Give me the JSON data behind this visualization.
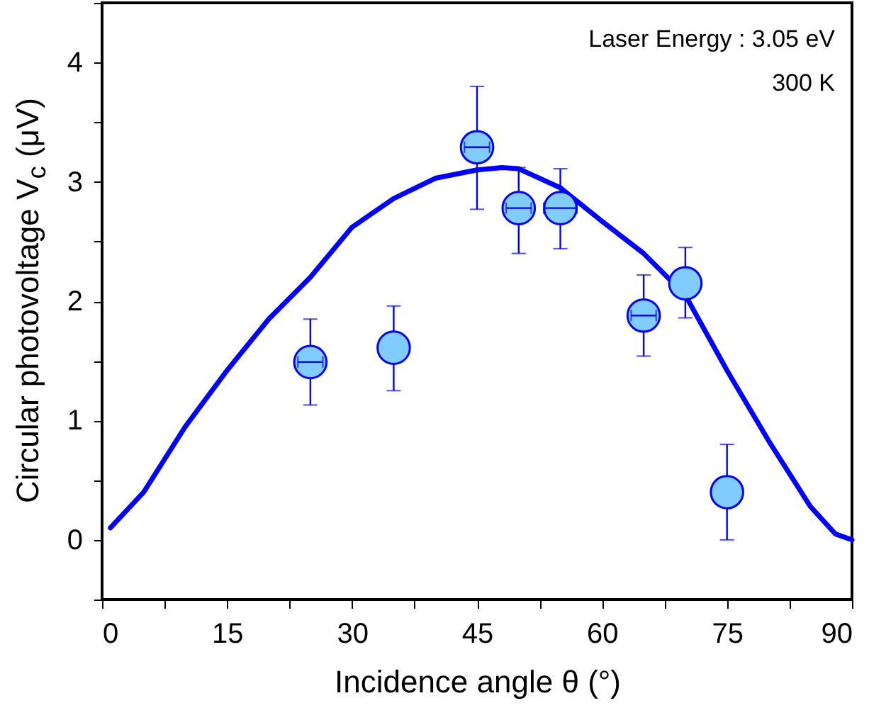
{
  "chart_data": {
    "type": "scatter",
    "xlabel": "Incidence angle θ (°)",
    "ylabel": "Circular photovoltage V$_{c}$ (μV)",
    "annotations": [
      "Laser Energy : 3.05 eV",
      "300 K"
    ],
    "xlim": [
      0,
      90
    ],
    "ylim": [
      -0.5,
      4.5
    ],
    "xticks": [
      0,
      {
        "value": 7.5,
        "label": null
      },
      15,
      {
        "value": 22.5,
        "label": null
      },
      30,
      {
        "value": 37.5,
        "label": null
      },
      45,
      {
        "value": 52.5,
        "label": null
      },
      60,
      {
        "value": 67.5,
        "label": null
      },
      75,
      {
        "value": 82.5,
        "label": null
      },
      90
    ],
    "yticks": [
      {
        "value": -0.5,
        "label": null
      },
      0,
      {
        "value": 0.5,
        "label": null
      },
      1,
      {
        "value": 1.5,
        "label": null
      },
      2,
      {
        "value": 2.5,
        "label": null
      },
      3,
      {
        "value": 3.5,
        "label": null
      },
      4,
      {
        "value": 4.5,
        "label": null
      }
    ],
    "series": [
      {
        "type": "line",
        "color": "#0000ff",
        "line_style": "solid",
        "x": [
          1,
          5,
          10,
          15,
          20,
          25,
          30,
          35,
          40,
          45,
          48,
          50,
          55,
          60,
          65,
          70,
          75,
          80,
          85,
          88,
          90
        ],
        "values": [
          0.1,
          0.4,
          0.95,
          1.42,
          1.85,
          2.2,
          2.62,
          2.86,
          3.03,
          3.1,
          3.12,
          3.11,
          2.95,
          2.67,
          2.4,
          2.05,
          1.42,
          0.83,
          0.28,
          0.05,
          0.0
        ]
      },
      {
        "type": "scatter",
        "color": "#80ccff",
        "marker": "circle",
        "x": [
          25,
          35,
          45,
          50,
          55,
          65,
          70,
          75
        ],
        "values": [
          1.49,
          1.61,
          3.29,
          2.78,
          2.78,
          1.88,
          2.15,
          0.4
        ],
        "errors": [
          [
            1.13,
            1.85
          ],
          [
            1.25,
            1.96
          ],
          [
            2.77,
            3.8
          ],
          [
            2.4,
            3.12
          ],
          [
            2.44,
            3.11
          ],
          [
            1.54,
            2.22
          ],
          [
            1.86,
            2.45
          ],
          [
            0.0,
            0.8
          ]
        ],
        "xerrors": [
          1.5,
          null,
          1.5,
          1.5,
          2,
          1.5,
          null,
          null
        ]
      }
    ]
  }
}
